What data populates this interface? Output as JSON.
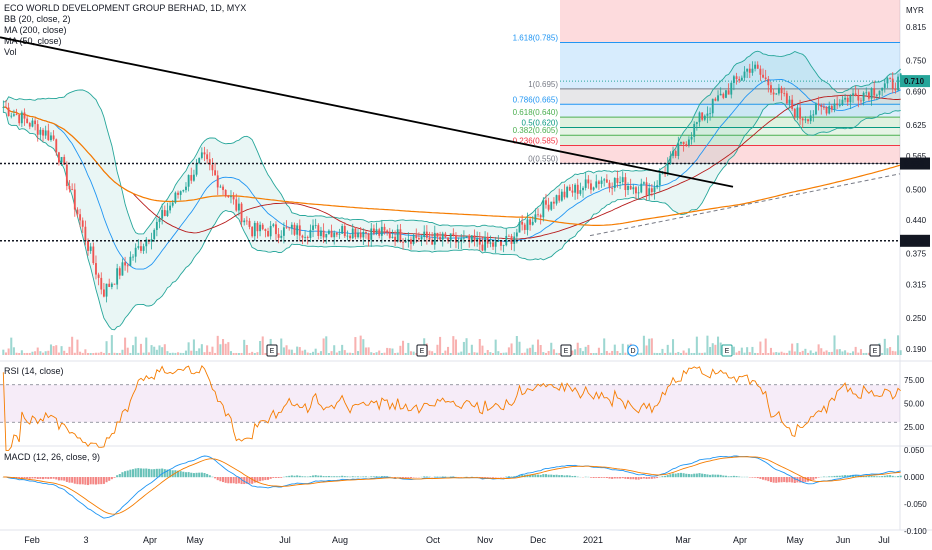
{
  "header": {
    "title": "ECO WORLD DEVELOPMENT GROUP BERHAD, 1D, MYX",
    "indicators": [
      "BB (20, close, 2)",
      "MA (200, close)",
      "MA (50, close)",
      "Vol"
    ],
    "currency": "MYR"
  },
  "colors": {
    "up": "#26a69a",
    "down": "#ef5350",
    "bb": "#26a69a",
    "ma200": "#f57c00",
    "ma50": "#b71c1c",
    "ma20": "#2196f3",
    "rsi": "#f57c00",
    "macd": "#2196f3",
    "signal": "#f57c00",
    "trendline": "#000000"
  },
  "price_axis": {
    "ticks": [
      "0.815",
      "0.750",
      "0.690",
      "0.625",
      "0.565",
      "0.500",
      "0.440",
      "0.375",
      "0.315",
      "0.250",
      "0.190"
    ],
    "badges": [
      {
        "label": "0.710",
        "kind": "last"
      },
      {
        "label": "0.550",
        "kind": "level"
      },
      {
        "label": "0.400",
        "kind": "level"
      }
    ]
  },
  "x_axis": {
    "labels": [
      "Feb",
      "3",
      "Apr",
      "May",
      "Jul",
      "Aug",
      "Oct",
      "Nov",
      "Dec",
      "2021",
      "Mar",
      "Apr",
      "May",
      "Jun",
      "Jul"
    ]
  },
  "fibonacci": [
    {
      "label": "1.618(0.785)",
      "value": 0.785
    },
    {
      "label": "1(0.695)",
      "value": 0.695
    },
    {
      "label": "0.786(0.665)",
      "value": 0.665
    },
    {
      "label": "0.618(0.640)",
      "value": 0.64
    },
    {
      "label": "0.5(0.620)",
      "value": 0.62
    },
    {
      "label": "0.382(0.605)",
      "value": 0.605
    },
    {
      "label": "0.236(0.585)",
      "value": 0.585
    },
    {
      "label": "0(0.550)",
      "value": 0.55
    }
  ],
  "levels": [
    0.55,
    0.4
  ],
  "earnings_markers": [
    "E",
    "E",
    "E",
    "D",
    "E",
    "E"
  ],
  "rsi": {
    "title": "RSI (14, close)",
    "ticks": [
      "75.00",
      "50.00",
      "25.00"
    ]
  },
  "macd": {
    "title": "MACD (12, 26, close, 9)",
    "ticks": [
      "0.050",
      "0.000",
      "-0.050",
      "-0.100"
    ]
  },
  "chart_data": {
    "type": "candlestick",
    "title": "ECO WORLD DEVELOPMENT GROUP BERHAD, 1D, MYX",
    "ylim": [
      0.17,
      0.85
    ],
    "last_price": 0.71,
    "key_points": [
      {
        "x": "2020-01",
        "y": 0.66
      },
      {
        "x": "2020-02",
        "y": 0.6
      },
      {
        "x": "2020-03",
        "y": 0.3
      },
      {
        "x": "2020-04",
        "y": 0.42
      },
      {
        "x": "2020-05",
        "y": 0.56
      },
      {
        "x": "2020-06",
        "y": 0.42
      },
      {
        "x": "2020-07",
        "y": 0.42
      },
      {
        "x": "2020-08",
        "y": 0.42
      },
      {
        "x": "2020-09",
        "y": 0.41
      },
      {
        "x": "2020-10",
        "y": 0.4
      },
      {
        "x": "2020-11",
        "y": 0.39
      },
      {
        "x": "2020-12",
        "y": 0.48
      },
      {
        "x": "2021-01",
        "y": 0.52
      },
      {
        "x": "2021-02",
        "y": 0.5
      },
      {
        "x": "2021-03",
        "y": 0.64
      },
      {
        "x": "2021-04",
        "y": 0.74
      },
      {
        "x": "2021-05",
        "y": 0.64
      },
      {
        "x": "2021-06",
        "y": 0.68
      },
      {
        "x": "2021-06-end",
        "y": 0.71
      }
    ]
  }
}
